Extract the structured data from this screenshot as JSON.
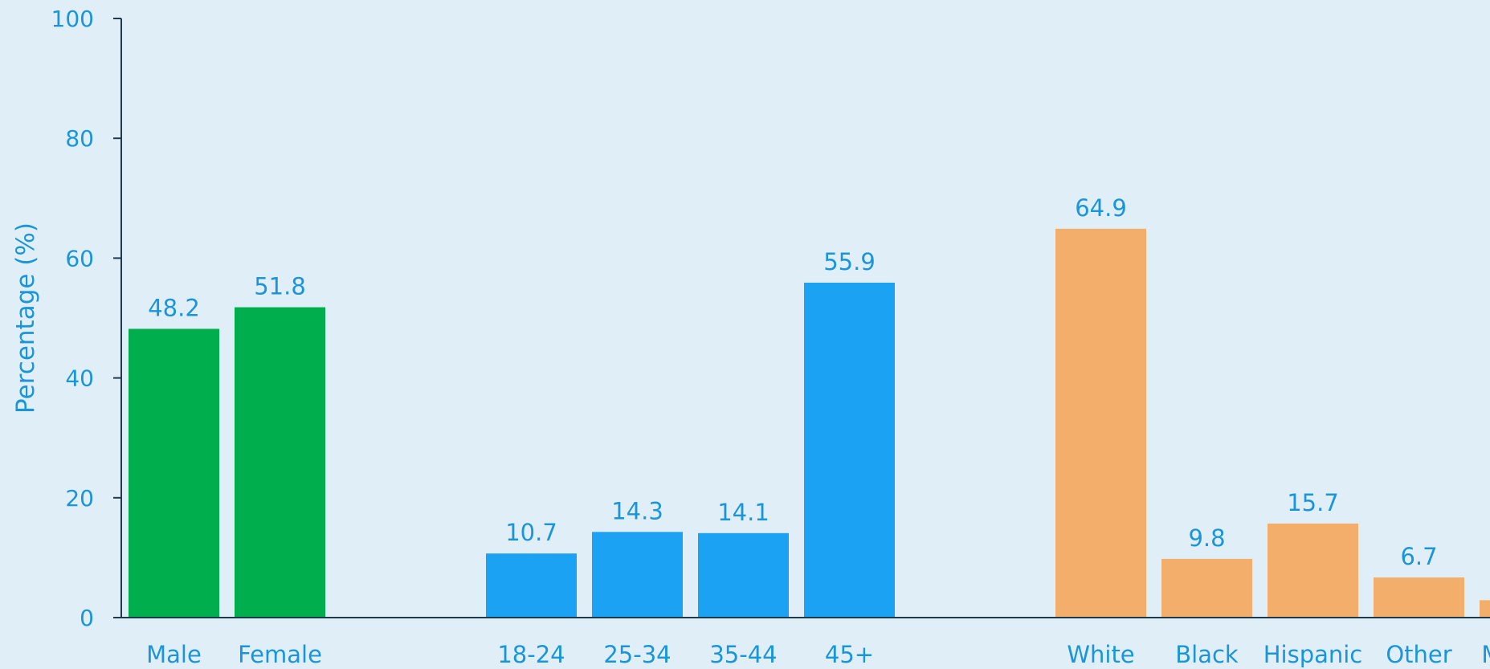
{
  "chart_data": {
    "type": "bar",
    "ylabel": "Percentage (%)",
    "ylim": [
      0,
      100
    ],
    "yticks": [
      0,
      20,
      40,
      60,
      80,
      100
    ],
    "grid": false,
    "series": [
      {
        "name": "",
        "color": "#00ae4d",
        "categories": [
          "Male",
          "Female"
        ],
        "values": [
          48.2,
          51.8
        ]
      },
      {
        "name": "",
        "color": "#1ba2f2",
        "categories": [
          "18-24",
          "25-34",
          "35-44",
          "45+"
        ],
        "values": [
          10.7,
          14.3,
          14.1,
          55.9
        ]
      },
      {
        "name": "",
        "color": "#f4ae6c",
        "categories": [
          "White",
          "Black",
          "Hispanic",
          "Other",
          "Missing"
        ],
        "values": [
          64.9,
          9.8,
          15.7,
          6.7,
          2.9
        ]
      }
    ],
    "colors": {
      "text": "#1a96d8",
      "axis": "#1f3a4d",
      "background": "#e0eef7"
    }
  }
}
